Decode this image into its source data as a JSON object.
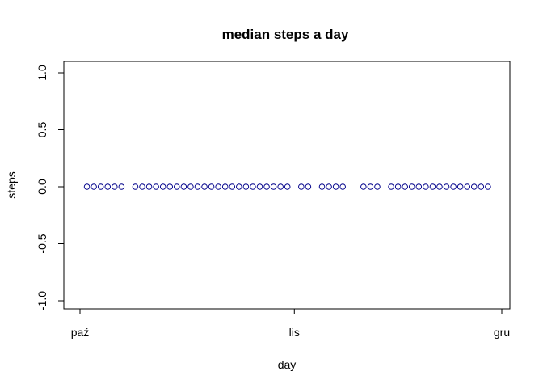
{
  "chart_data": {
    "type": "scatter",
    "title": "median steps a day",
    "xlabel": "day",
    "ylabel": "steps",
    "ylim": [
      -1.0,
      1.0
    ],
    "yticks": [
      -1.0,
      -0.5,
      0.0,
      0.5,
      1.0
    ],
    "ytick_labels": [
      "-1.0",
      "-0.5",
      "0.0",
      "0.5",
      "1.0"
    ],
    "xlim": [
      "2012-09-29",
      "2012-12-02"
    ],
    "xticks": [
      "2012-10-01",
      "2012-11-01",
      "2012-12-01"
    ],
    "xtick_labels": [
      "paź",
      "lis",
      "gru"
    ],
    "point_color": "#00008B",
    "marker": "open-circle",
    "grid": false,
    "x": [
      "2012-10-02",
      "2012-10-03",
      "2012-10-04",
      "2012-10-05",
      "2012-10-06",
      "2012-10-07",
      "2012-10-09",
      "2012-10-10",
      "2012-10-11",
      "2012-10-12",
      "2012-10-13",
      "2012-10-14",
      "2012-10-15",
      "2012-10-16",
      "2012-10-17",
      "2012-10-18",
      "2012-10-19",
      "2012-10-20",
      "2012-10-21",
      "2012-10-22",
      "2012-10-23",
      "2012-10-24",
      "2012-10-25",
      "2012-10-26",
      "2012-10-27",
      "2012-10-28",
      "2012-10-29",
      "2012-10-30",
      "2012-10-31",
      "2012-11-02",
      "2012-11-03",
      "2012-11-05",
      "2012-11-06",
      "2012-11-07",
      "2012-11-08",
      "2012-11-11",
      "2012-11-12",
      "2012-11-13",
      "2012-11-15",
      "2012-11-16",
      "2012-11-17",
      "2012-11-18",
      "2012-11-19",
      "2012-11-20",
      "2012-11-21",
      "2012-11-22",
      "2012-11-23",
      "2012-11-24",
      "2012-11-25",
      "2012-11-26",
      "2012-11-27",
      "2012-11-28",
      "2012-11-29"
    ],
    "y": [
      0,
      0,
      0,
      0,
      0,
      0,
      0,
      0,
      0,
      0,
      0,
      0,
      0,
      0,
      0,
      0,
      0,
      0,
      0,
      0,
      0,
      0,
      0,
      0,
      0,
      0,
      0,
      0,
      0,
      0,
      0,
      0,
      0,
      0,
      0,
      0,
      0,
      0,
      0,
      0,
      0,
      0,
      0,
      0,
      0,
      0,
      0,
      0,
      0,
      0,
      0,
      0,
      0
    ]
  }
}
